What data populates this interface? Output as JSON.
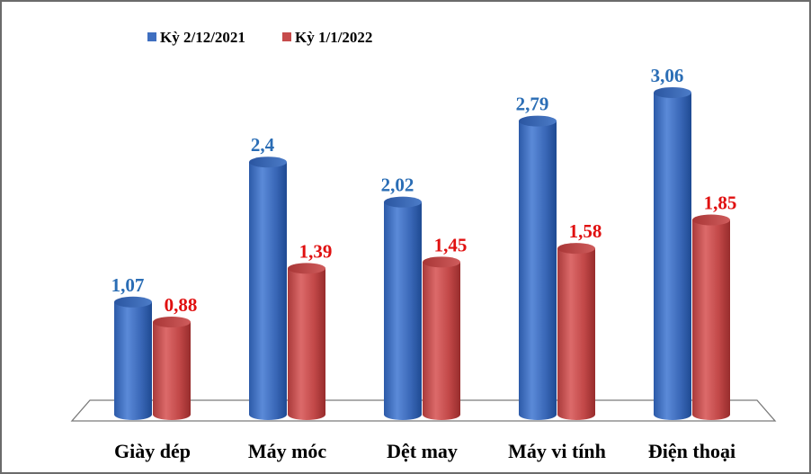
{
  "chart_data": {
    "type": "bar",
    "title": "",
    "xlabel": "",
    "ylabel": "",
    "categories": [
      "Giày dép",
      "Máy móc",
      "Dệt may",
      "Máy vi tính",
      "Điện thoại"
    ],
    "series": [
      {
        "name": "Kỳ 2/12/2021",
        "values": [
          1.07,
          2.4,
          2.02,
          2.79,
          3.06
        ],
        "labels": [
          "1,07",
          "2,4",
          "2,02",
          "2,79",
          "3,06"
        ],
        "color": "#3f6fc0",
        "label_color": "#2a6db5"
      },
      {
        "name": "Kỳ 1/1/2022",
        "values": [
          0.88,
          1.39,
          1.45,
          1.58,
          1.85
        ],
        "labels": [
          "0,88",
          "1,39",
          "1,45",
          "1,58",
          "1,85"
        ],
        "color": "#c64b4b",
        "label_color": "#e01010"
      }
    ],
    "ylim": [
      0,
      3.5
    ],
    "grid": false,
    "legend_position": "top-left"
  }
}
